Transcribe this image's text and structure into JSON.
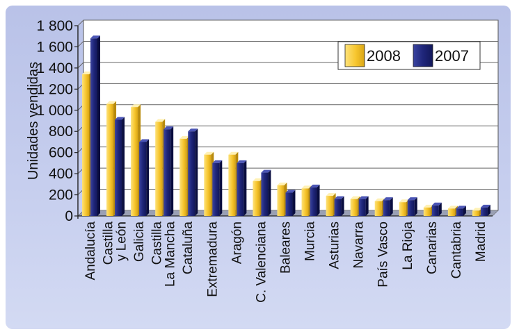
{
  "chart_data": {
    "type": "bar",
    "title": "",
    "xlabel": "",
    "ylabel": "Unidades vendidas",
    "ylim": [
      0,
      1800
    ],
    "yticks": [
      0,
      200,
      400,
      600,
      800,
      1000,
      1200,
      1400,
      1600,
      1800
    ],
    "ytick_labels": [
      "0",
      "200",
      "400",
      "600",
      "800",
      "1 000",
      "1 200",
      "1 400",
      "1 600",
      "1 800"
    ],
    "grid": true,
    "legend": "top-right",
    "categories": [
      [
        "Andalucía"
      ],
      [
        "Castilla",
        "y León"
      ],
      [
        "Galicia"
      ],
      [
        "Castilla",
        "La Mancha"
      ],
      [
        "Cataluña"
      ],
      [
        "Extremadura"
      ],
      [
        "Aragón"
      ],
      [
        "C. Valenciana"
      ],
      [
        "Baleares"
      ],
      [
        "Murcia"
      ],
      [
        "Asturias"
      ],
      [
        "Navarra"
      ],
      [
        "País Vasco"
      ],
      [
        "La Rioja"
      ],
      [
        "Canarias"
      ],
      [
        "Cantabria"
      ],
      [
        "Madrid"
      ]
    ],
    "series": [
      {
        "name": "2008",
        "color": "#f7c62f",
        "values": [
          1340,
          1060,
          1030,
          890,
          730,
          580,
          580,
          330,
          290,
          260,
          190,
          160,
          140,
          130,
          80,
          70,
          50
        ]
      },
      {
        "name": "2007",
        "color": "#1c2370",
        "values": [
          1680,
          910,
          700,
          820,
          800,
          500,
          500,
          410,
          220,
          270,
          160,
          160,
          150,
          150,
          100,
          70,
          80
        ]
      }
    ]
  }
}
